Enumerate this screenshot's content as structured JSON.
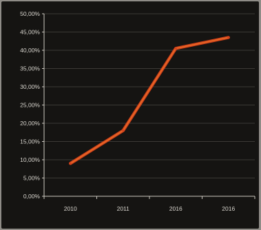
{
  "chart_data": {
    "type": "line",
    "title": "",
    "xlabel": "",
    "ylabel": "",
    "categories": [
      "2010",
      "2011",
      "2016",
      "2016"
    ],
    "series": [
      {
        "values": [
          9.0,
          18.0,
          40.5,
          43.5
        ]
      }
    ],
    "ylim": [
      0,
      50
    ],
    "y_ticks": [
      0,
      5,
      10,
      15,
      20,
      25,
      30,
      35,
      40,
      45,
      50
    ],
    "y_tick_labels": [
      "0,00%",
      "5,00%",
      "10,00%",
      "15,00%",
      "20,00%",
      "25,00%",
      "30,00%",
      "35,00%",
      "40,00%",
      "45,00%",
      "50,00%"
    ],
    "grid": true,
    "legend": "none",
    "colors": {
      "background": "#151412",
      "line": "#d3431c",
      "line_highlight": "#f07a2a",
      "gridline": "#3c3a36",
      "text": "#d9d6cf"
    }
  }
}
